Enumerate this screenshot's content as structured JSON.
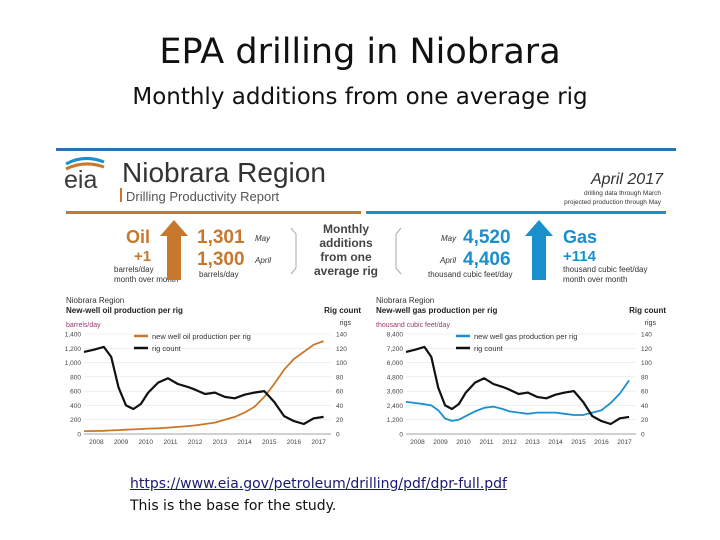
{
  "slide": {
    "title": "EPA drilling in Niobrara",
    "subtitle": "Monthly additions from one average rig",
    "link": "https://www.eia.gov/petroleum/drilling/pdf/dpr-full.pdf",
    "note": "This is the base for the study."
  },
  "report": {
    "logo": "eia",
    "region_title": "Niobrara Region",
    "report_name": "Drilling Productivity Report",
    "date": "April 2017",
    "date_note_1": "drilling data through March",
    "date_note_2": "projected production through May",
    "oil": {
      "label": "Oil",
      "change": "+1",
      "unit_1": "barrels/day",
      "unit_2": "month over month",
      "may_value": "1,301",
      "may_label": "May",
      "april_value": "1,300",
      "april_label": "April",
      "value_unit": "barrels/day",
      "color": "#c8782d"
    },
    "center": {
      "line1": "Monthly",
      "line2": "additions",
      "line3": "from one",
      "line4": "average rig"
    },
    "gas": {
      "label": "Gas",
      "change": "+114",
      "unit_1": "thousand cubic feet/day",
      "unit_2": "month over month",
      "may_value": "4,520",
      "may_label": "May",
      "april_value": "4,406",
      "april_label": "April",
      "value_unit": "thousand cubic feet/day",
      "color": "#1a8fce"
    }
  },
  "chart_data": [
    {
      "type": "line",
      "region": "Niobrara Region",
      "title": "New-well oil production per rig",
      "ylabel": "barrels/day",
      "ylabel_right": "Rig count",
      "ylabel_right_sub": "rigs",
      "ylim": [
        0,
        1400
      ],
      "yticks": [
        "0",
        "200",
        "400",
        "600",
        "800",
        "1,000",
        "1,200",
        "1,400"
      ],
      "ylim_right": [
        0,
        140
      ],
      "yticks_right": [
        "0",
        "20",
        "40",
        "60",
        "80",
        "100",
        "120",
        "140"
      ],
      "x": [
        2007.5,
        2007.9,
        2008.3,
        2008.6,
        2008.9,
        2009.2,
        2009.5,
        2009.8,
        2010.1,
        2010.5,
        2010.9,
        2011.3,
        2011.7,
        2012.0,
        2012.4,
        2012.8,
        2013.2,
        2013.6,
        2014.0,
        2014.4,
        2014.8,
        2015.2,
        2015.6,
        2016.0,
        2016.4,
        2016.8,
        2017.2
      ],
      "xticks": [
        "2008",
        "2009",
        "2010",
        "2011",
        "2012",
        "2013",
        "2014",
        "2015",
        "2016",
        "2017"
      ],
      "series": [
        {
          "name": "new well oil production per rig",
          "axis": "left",
          "color": "#c8782d",
          "values": [
            40,
            42,
            45,
            50,
            55,
            60,
            65,
            70,
            75,
            80,
            90,
            100,
            110,
            120,
            140,
            160,
            200,
            240,
            300,
            380,
            520,
            700,
            900,
            1050,
            1150,
            1250,
            1300
          ]
        },
        {
          "name": "rig count",
          "axis": "right",
          "color": "#111111",
          "values": [
            115,
            118,
            122,
            108,
            65,
            40,
            35,
            42,
            58,
            72,
            78,
            70,
            66,
            62,
            56,
            58,
            52,
            50,
            55,
            58,
            60,
            45,
            25,
            18,
            14,
            22,
            24
          ]
        }
      ]
    },
    {
      "type": "line",
      "region": "Niobrara Region",
      "title": "New-well gas production per rig",
      "ylabel": "thousand cubic feet/day",
      "ylabel_right": "Rig count",
      "ylabel_right_sub": "rigs",
      "ylim": [
        0,
        8400
      ],
      "yticks": [
        "0",
        "1,200",
        "2,400",
        "3,600",
        "4,800",
        "6,000",
        "7,200",
        "8,400"
      ],
      "ylim_right": [
        0,
        140
      ],
      "yticks_right": [
        "0",
        "20",
        "40",
        "60",
        "80",
        "100",
        "120",
        "140"
      ],
      "x": [
        2007.5,
        2007.9,
        2008.3,
        2008.6,
        2008.9,
        2009.2,
        2009.5,
        2009.8,
        2010.1,
        2010.5,
        2010.9,
        2011.3,
        2011.7,
        2012.0,
        2012.4,
        2012.8,
        2013.2,
        2013.6,
        2014.0,
        2014.4,
        2014.8,
        2015.2,
        2015.6,
        2016.0,
        2016.4,
        2016.8,
        2017.2
      ],
      "xticks": [
        "2008",
        "2009",
        "2010",
        "2011",
        "2012",
        "2013",
        "2014",
        "2015",
        "2016",
        "2017"
      ],
      "series": [
        {
          "name": "new well gas production per rig",
          "axis": "left",
          "color": "#1a8fce",
          "values": [
            2700,
            2600,
            2500,
            2400,
            2000,
            1300,
            1100,
            1200,
            1500,
            1900,
            2200,
            2300,
            2100,
            1900,
            1800,
            1700,
            1800,
            1800,
            1800,
            1700,
            1600,
            1600,
            1800,
            2000,
            2600,
            3400,
            4500
          ]
        },
        {
          "name": "rig count",
          "axis": "right",
          "color": "#111111",
          "values": [
            115,
            118,
            122,
            108,
            65,
            40,
            35,
            42,
            58,
            72,
            78,
            70,
            66,
            62,
            56,
            58,
            52,
            50,
            55,
            58,
            60,
            45,
            25,
            18,
            14,
            22,
            24
          ]
        }
      ]
    }
  ]
}
